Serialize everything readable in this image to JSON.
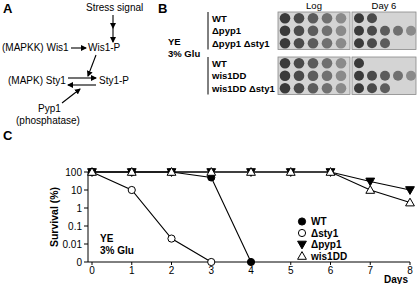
{
  "panel_a": {
    "label": "A",
    "stress_signal": "Stress signal",
    "mapkk": "(MAPKK) Wis1",
    "mapkk_p": "Wis1-P",
    "mapk": "(MAPK) Sty1",
    "mapk_p": "Sty1-P",
    "phosphatase": "Pyp1",
    "phosphatase_role": "(phosphatase)"
  },
  "panel_b": {
    "label": "B",
    "medium": [
      "YE",
      "3% Glu"
    ],
    "columns": [
      "Log",
      "Day 6"
    ],
    "groups": [
      {
        "rows": [
          {
            "label": "WT",
            "log_spots": 5,
            "day6_spots": 2
          },
          {
            "label": "Δpyp1",
            "log_spots": 5,
            "day6_spots": 5
          },
          {
            "label": "Δpyp1 Δsty1",
            "log_spots": 5,
            "day6_spots": 3
          }
        ]
      },
      {
        "rows": [
          {
            "label": "WT",
            "log_spots": 5,
            "day6_spots": 1
          },
          {
            "label": "wis1DD",
            "log_spots": 5,
            "day6_spots": 5
          },
          {
            "label": "wis1DD Δsty1",
            "log_spots": 5,
            "day6_spots": 3
          }
        ]
      }
    ]
  },
  "chart_data": {
    "type": "line",
    "panel_label": "C",
    "annotations": [
      "YE",
      "3% Glu"
    ],
    "x_label": "Days",
    "y_label": "Survival (%)",
    "x": [
      0,
      1,
      2,
      3,
      4,
      5,
      6,
      7,
      8
    ],
    "series": [
      {
        "name": "WT",
        "color": "#000000",
        "marker": "filled-circle",
        "values": [
          100,
          100,
          100,
          50,
          0.001,
          null,
          null,
          null,
          null
        ]
      },
      {
        "name": "Δsty1",
        "color": "#000000",
        "marker": "open-circle",
        "values": [
          100,
          10,
          0.02,
          0.001,
          null,
          null,
          null,
          null,
          null
        ]
      },
      {
        "name": "Δpyp1",
        "color": "#000000",
        "marker": "filled-triangle-down",
        "values": [
          100,
          100,
          100,
          100,
          100,
          100,
          100,
          30,
          10
        ]
      },
      {
        "name": "wis1DD",
        "color": "#000000",
        "marker": "open-triangle-up",
        "values": [
          100,
          100,
          100,
          100,
          100,
          100,
          100,
          10,
          2
        ]
      }
    ],
    "xlim": [
      0,
      8
    ],
    "xticks": [
      0,
      1,
      2,
      3,
      4,
      5,
      6,
      7,
      8
    ],
    "ylim": [
      0.001,
      100
    ],
    "yticks": [
      {
        "value": 0.001,
        "label": "0"
      },
      0.01,
      0.1,
      1,
      10,
      100
    ],
    "log": "y",
    "legend": "lower right"
  }
}
